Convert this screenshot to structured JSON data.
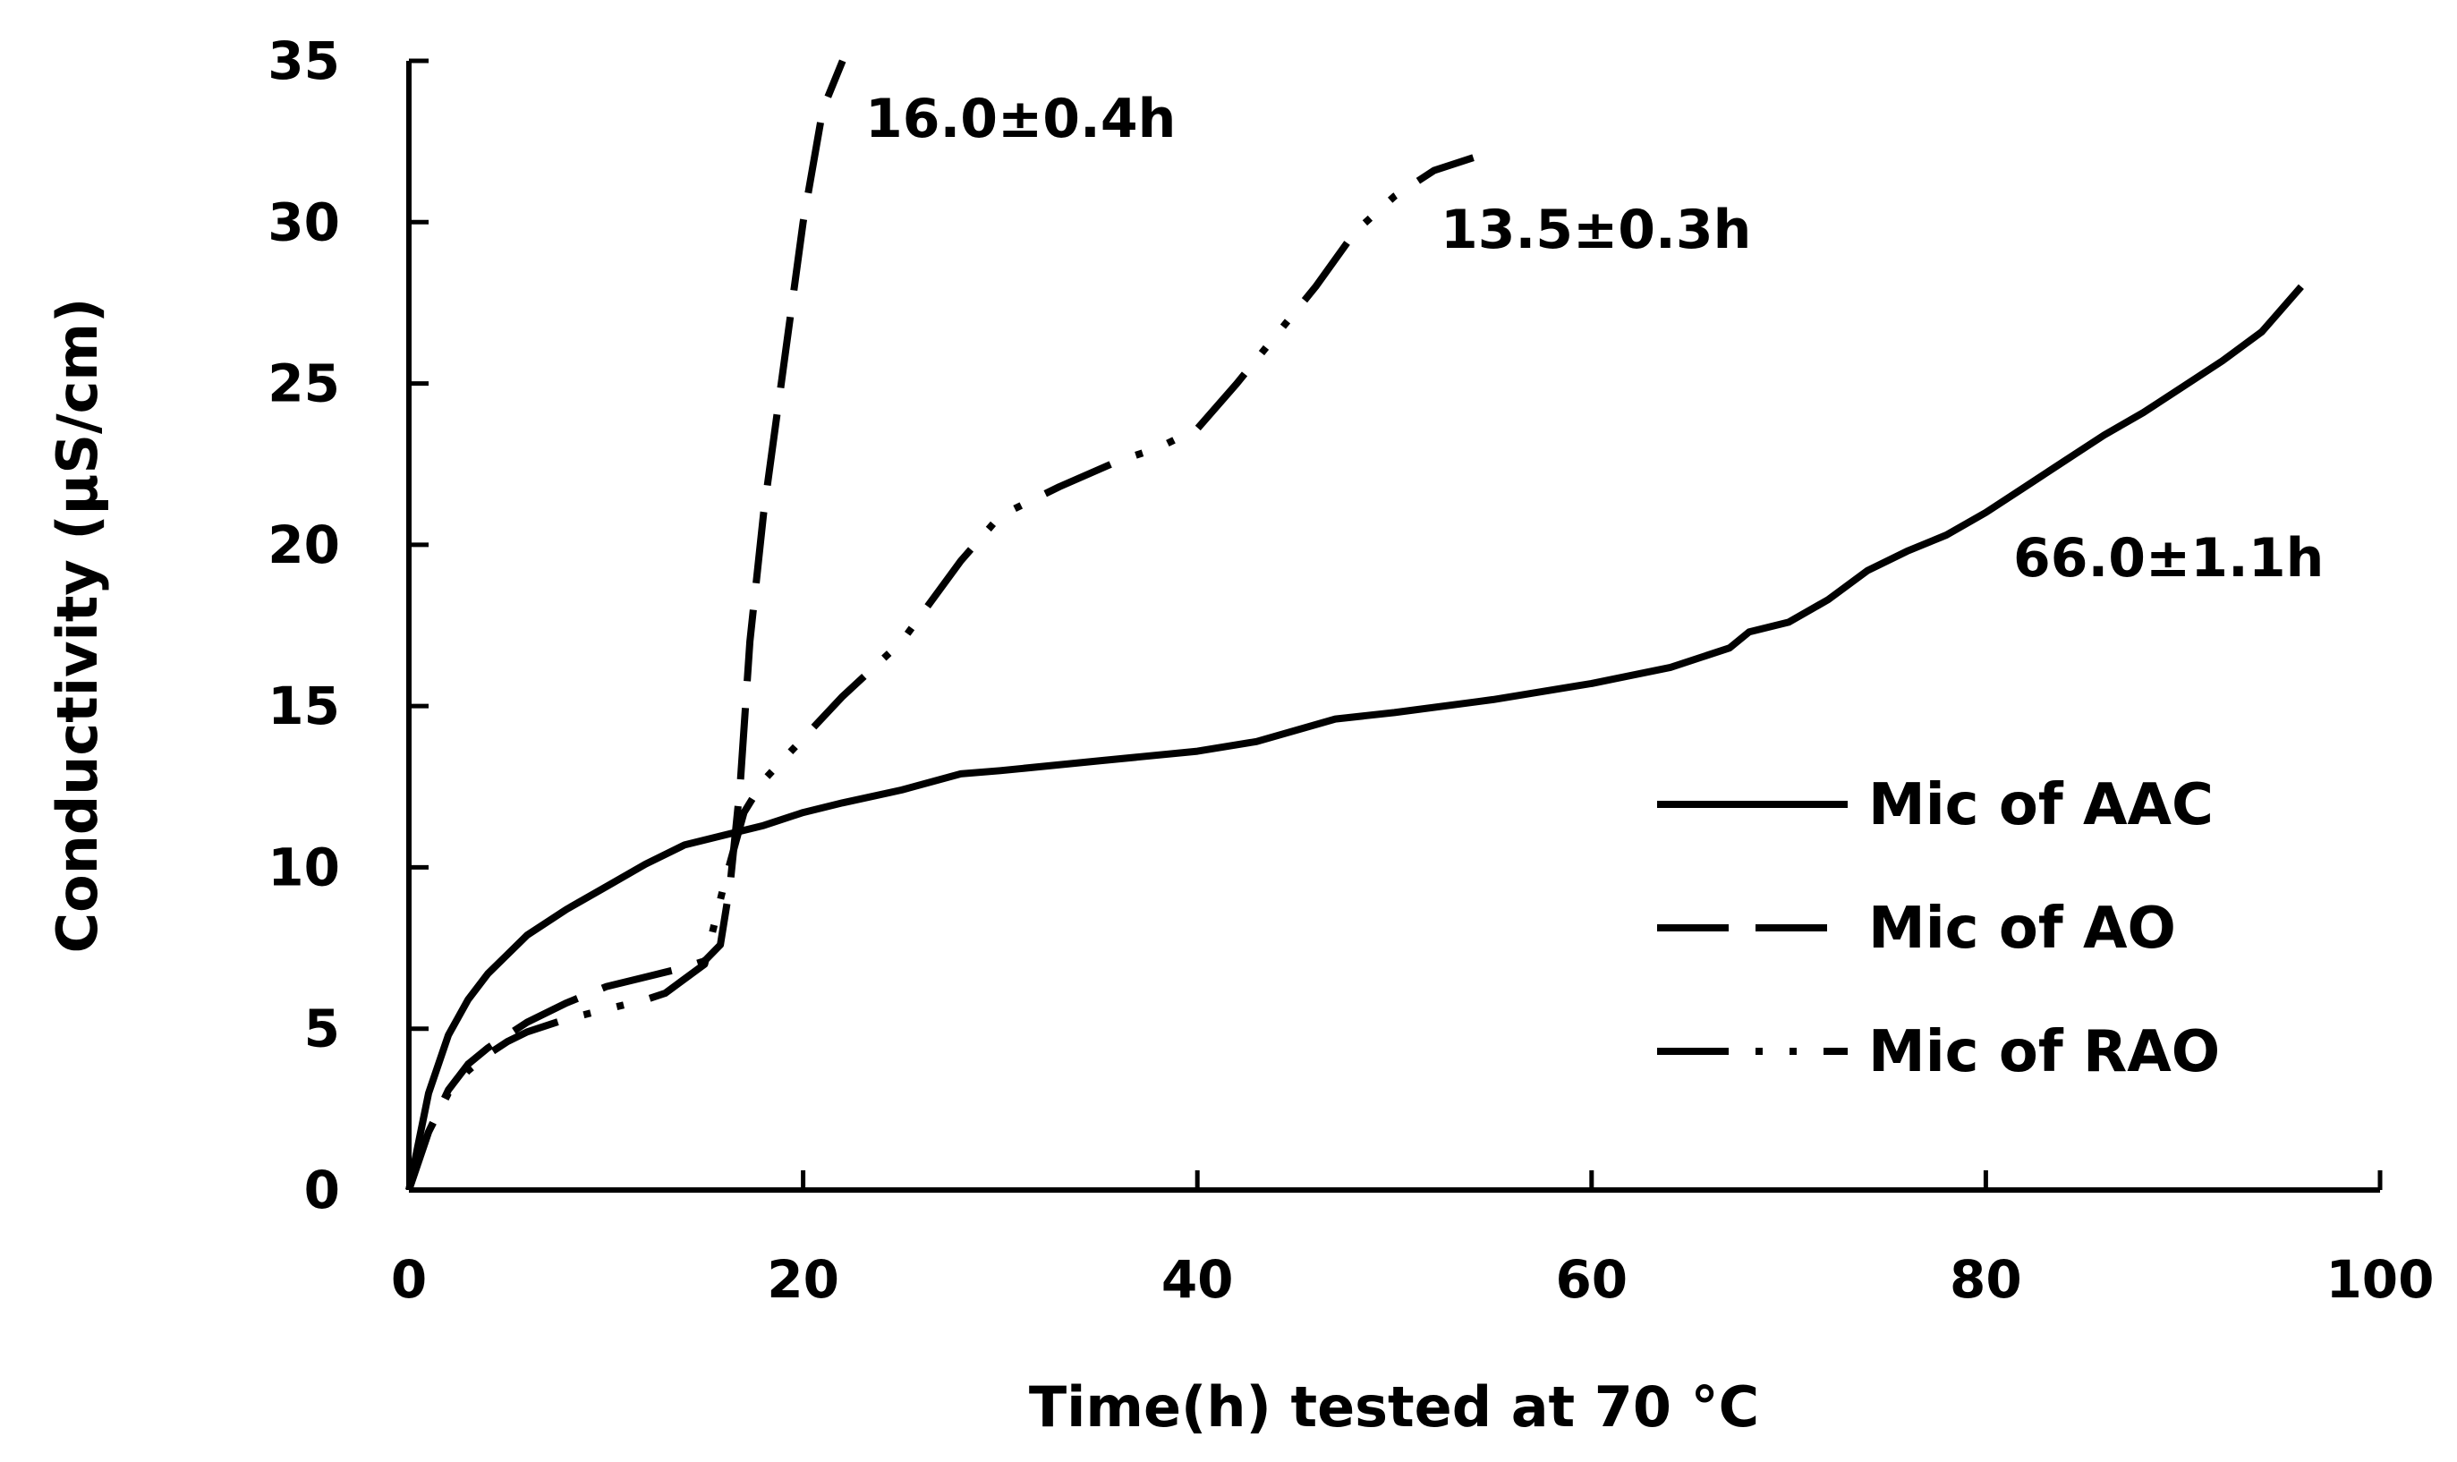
{
  "chart_data": {
    "type": "line",
    "title": "",
    "xlabel": "Time(h) tested at 70 °C",
    "ylabel": "Conductivity (μS/cm)",
    "xlim": [
      0,
      100
    ],
    "ylim": [
      0,
      35
    ],
    "x_ticks": [
      0,
      20,
      40,
      60,
      80,
      100
    ],
    "y_ticks": [
      0,
      5,
      10,
      15,
      20,
      25,
      30,
      35
    ],
    "grid": false,
    "legend_position": "right",
    "series": [
      {
        "name": "Mic of AAC",
        "style": "solid",
        "x": [
          0,
          0.5,
          1,
          2,
          3,
          4,
          5,
          6,
          8,
          10,
          12,
          14,
          16,
          18,
          20,
          22,
          25,
          28,
          30,
          35,
          40,
          43,
          47,
          50,
          55,
          60,
          64,
          67,
          68,
          70,
          72,
          74,
          76,
          78,
          80,
          82,
          84,
          86,
          88,
          90,
          92,
          94,
          96
        ],
        "y": [
          0,
          1.5,
          3,
          4.8,
          5.9,
          6.7,
          7.3,
          7.9,
          8.7,
          9.4,
          10.1,
          10.7,
          11.0,
          11.3,
          11.7,
          12.0,
          12.4,
          12.9,
          13.0,
          13.3,
          13.6,
          13.9,
          14.6,
          14.8,
          15.2,
          15.7,
          16.2,
          16.8,
          17.3,
          17.6,
          18.3,
          19.2,
          19.8,
          20.3,
          21.0,
          21.8,
          22.6,
          23.4,
          24.1,
          24.9,
          25.7,
          26.6,
          28.0
        ]
      },
      {
        "name": "Mic of AO",
        "style": "long-dash",
        "x": [
          0,
          1,
          2,
          3,
          4,
          5,
          6,
          8,
          10,
          12,
          14,
          15,
          15.8,
          16.3,
          16.8,
          17.3,
          18,
          19,
          20,
          21,
          22
        ],
        "y": [
          0,
          1.8,
          3.1,
          3.9,
          4.4,
          4.8,
          5.2,
          5.8,
          6.3,
          6.6,
          6.9,
          7.1,
          7.6,
          9.5,
          12.5,
          17.0,
          21.0,
          25.5,
          30.0,
          33.5,
          35.0
        ]
      },
      {
        "name": "Mic of RAO",
        "style": "dash-dot-dot",
        "x": [
          0,
          1,
          2,
          3,
          4,
          5,
          6,
          8,
          10,
          12,
          13,
          15,
          16,
          17,
          18,
          20,
          22,
          25,
          28,
          30,
          33,
          36,
          38,
          40,
          42,
          44,
          46,
          48,
          50,
          52,
          54
        ],
        "y": [
          0,
          1.8,
          3.0,
          3.7,
          4.2,
          4.6,
          4.9,
          5.3,
          5.6,
          5.9,
          6.1,
          7.0,
          9.5,
          11.7,
          12.7,
          14.0,
          15.3,
          17.0,
          19.5,
          20.9,
          21.8,
          22.6,
          23.0,
          23.6,
          25.0,
          26.5,
          28.0,
          29.7,
          30.8,
          31.6,
          32.0
        ]
      }
    ],
    "annotations": [
      {
        "text": "16.0±0.4h",
        "series": "Mic of AO"
      },
      {
        "text": "13.5±0.3h",
        "series": "Mic of RAO"
      },
      {
        "text": "66.0±1.1h",
        "series": "Mic of AAC"
      }
    ]
  }
}
